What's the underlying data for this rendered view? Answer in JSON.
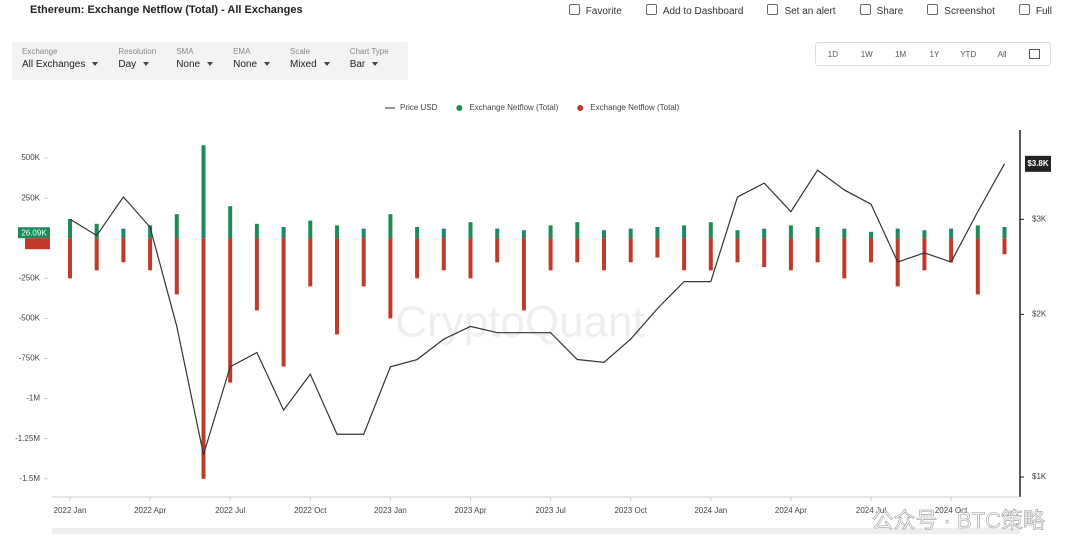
{
  "header": {
    "title": "Ethereum: Exchange Netflow (Total) - All Exchanges",
    "actions": [
      "Favorite",
      "Add to Dashboard",
      "Set an alert",
      "Share",
      "Screenshot",
      "Full"
    ]
  },
  "filters": [
    {
      "label": "Exchange",
      "value": "All Exchanges"
    },
    {
      "label": "Resolution",
      "value": "Day"
    },
    {
      "label": "SMA",
      "value": "None"
    },
    {
      "label": "EMA",
      "value": "None"
    },
    {
      "label": "Scale",
      "value": "Mixed"
    },
    {
      "label": "Chart Type",
      "value": "Bar"
    }
  ],
  "ranges": [
    "1D",
    "1W",
    "1M",
    "1Y",
    "YTD",
    "All"
  ],
  "watermark": "CryptoQuant",
  "overlay": "公众号 · BTC策略",
  "chart_data": {
    "type": "bar",
    "categories": [
      "2022 Jan",
      null,
      null,
      "2022 Apr",
      null,
      null,
      "2022 Jul",
      null,
      null,
      "2022 Oct",
      null,
      null,
      "2023 Jan",
      null,
      null,
      "2023 Apr",
      null,
      null,
      "2023 Jul",
      null,
      null,
      "2023 Oct",
      null,
      null,
      "2024 Jan",
      null,
      null,
      "2024 Apr",
      null,
      null,
      "2024 Jul",
      null,
      null,
      "2024 Oct",
      null,
      null
    ],
    "series": [
      {
        "name": "Price USD",
        "type": "line",
        "axis": "y2",
        "color": "#333333",
        "values": [
          3000,
          2800,
          3300,
          2900,
          1900,
          1100,
          1600,
          1700,
          1330,
          1550,
          1200,
          1200,
          1600,
          1650,
          1800,
          1900,
          1850,
          1850,
          1850,
          1650,
          1630,
          1800,
          2050,
          2300,
          2300,
          3300,
          3500,
          3100,
          3700,
          3400,
          3200,
          2500,
          2600,
          2500,
          3100,
          3800
        ]
      },
      {
        "name": "Exchange Netflow (Total)",
        "color": "#1e8a5a",
        "values": [
          120000,
          90000,
          60000,
          80000,
          150000,
          580000,
          200000,
          90000,
          70000,
          110000,
          80000,
          60000,
          150000,
          70000,
          60000,
          100000,
          60000,
          50000,
          80000,
          100000,
          50000,
          60000,
          70000,
          80000,
          100000,
          50000,
          60000,
          80000,
          70000,
          60000,
          40000,
          60000,
          50000,
          60000,
          80000,
          70000
        ]
      },
      {
        "name": "Exchange Netflow (Total)",
        "color": "#c0392b",
        "values": [
          -250000,
          -200000,
          -150000,
          -200000,
          -350000,
          -1500000,
          -900000,
          -450000,
          -800000,
          -300000,
          -600000,
          -300000,
          -500000,
          -250000,
          -200000,
          -250000,
          -150000,
          -450000,
          -200000,
          -150000,
          -200000,
          -150000,
          -120000,
          -200000,
          -200000,
          -150000,
          -180000,
          -200000,
          -150000,
          -250000,
          -150000,
          -300000,
          -200000,
          -150000,
          -350000,
          -100000
        ]
      }
    ],
    "ylim": [
      -1570000,
      675000
    ],
    "yticks": [
      {
        "value": 500000,
        "label": "500K"
      },
      {
        "value": 250000,
        "label": "250K"
      },
      {
        "value": 0,
        "label": "0"
      },
      {
        "value": -250000,
        "label": "-250K"
      },
      {
        "value": -500000,
        "label": "-500K"
      },
      {
        "value": -750000,
        "label": "-750K"
      },
      {
        "value": -1000000,
        "label": "-1M"
      },
      {
        "value": -1250000,
        "label": "-1.25M"
      },
      {
        "value": -1500000,
        "label": "-1.5M"
      }
    ],
    "y2lim": [
      946,
      4390
    ],
    "y2log": true,
    "y2ticks": [
      {
        "value": 1000,
        "label": "$1K"
      },
      {
        "value": 2000,
        "label": "$2K"
      },
      {
        "value": 3000,
        "label": "$3K"
      }
    ],
    "last_labels": {
      "left": "26.09K",
      "right": "$3.8K"
    },
    "grid": false
  }
}
